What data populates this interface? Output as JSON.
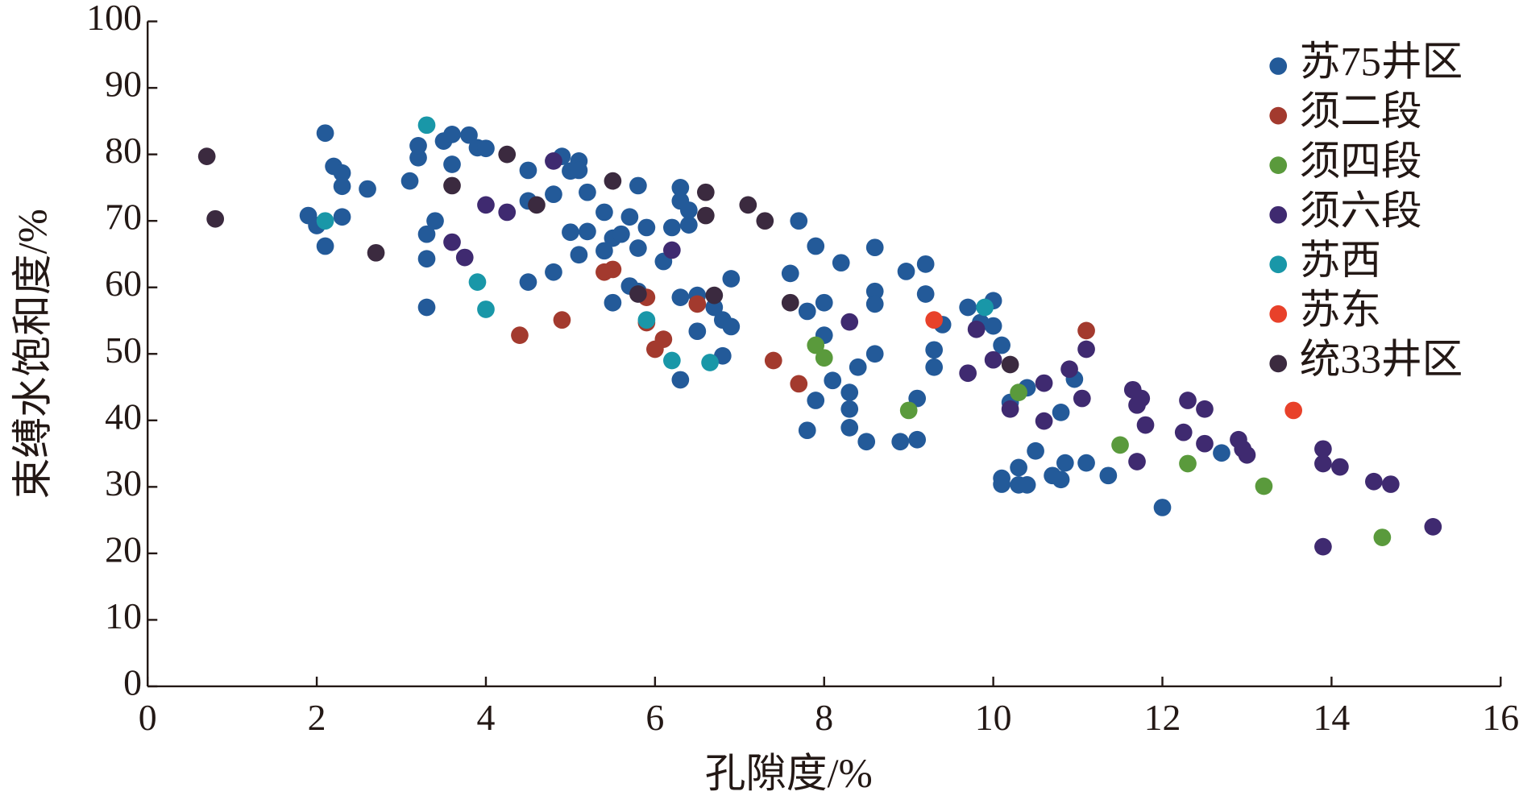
{
  "chart_data": {
    "type": "scatter",
    "x_label": "孔隙度/%",
    "y_label": "束缚水饱和度/%",
    "xlim": [
      0,
      16
    ],
    "ylim": [
      0,
      100
    ],
    "xticks": [
      0,
      2,
      4,
      6,
      8,
      10,
      12,
      14,
      16
    ],
    "yticks": [
      0,
      10,
      20,
      30,
      40,
      50,
      60,
      70,
      80,
      90,
      100
    ],
    "grid": false,
    "legend": "upper right",
    "series": [
      {
        "name": "苏75井区",
        "color": "#235a99",
        "x": [
          2.1,
          2.2,
          2.3,
          2.3,
          2.6,
          1.9,
          2.0,
          2.3,
          2.1,
          3.1,
          3.2,
          3.2,
          3.3,
          3.3,
          3.3,
          3.4,
          3.5,
          3.6,
          3.8,
          3.6,
          3.9,
          4.0,
          4.5,
          4.5,
          4.5,
          4.8,
          4.8,
          4.9,
          5.0,
          5.1,
          5.1,
          5.0,
          5.2,
          5.1,
          5.2,
          5.4,
          5.5,
          5.4,
          5.5,
          5.6,
          5.7,
          5.8,
          5.7,
          5.8,
          5.8,
          5.9,
          6.1,
          6.2,
          6.3,
          6.3,
          6.4,
          6.4,
          6.3,
          6.5,
          6.5,
          6.3,
          6.7,
          6.8,
          6.9,
          6.9,
          6.8,
          7.6,
          7.7,
          7.8,
          7.9,
          8.0,
          8.0,
          7.8,
          7.9,
          8.1,
          8.2,
          8.3,
          8.3,
          8.3,
          8.4,
          8.6,
          8.6,
          8.6,
          8.6,
          8.5,
          8.97,
          9.2,
          9.2,
          8.9,
          9.1,
          9.1,
          9.3,
          9.3,
          9.4,
          9.7,
          9.85,
          10.0,
          10.0,
          10.1,
          10.2,
          10.1,
          10.1,
          10.3,
          10.3,
          10.4,
          10.4,
          10.5,
          10.7,
          10.8,
          10.8,
          10.85,
          10.96,
          11.1,
          11.36,
          12.0,
          12.7
        ],
        "y": [
          83.2,
          78.2,
          77.2,
          75.2,
          74.8,
          70.8,
          69.3,
          70.6,
          66.2,
          76,
          79.5,
          81.3,
          68,
          64.3,
          57,
          70,
          82,
          83,
          82.9,
          78.5,
          81,
          80.9,
          73,
          77.6,
          60.8,
          74,
          62.3,
          79.7,
          77.5,
          79,
          77.6,
          68.3,
          68.4,
          64.9,
          74.3,
          71.3,
          67.4,
          65.5,
          57.7,
          68,
          70.6,
          75.3,
          60.2,
          65.9,
          59.4,
          69,
          63.9,
          69,
          75,
          73,
          69.4,
          71.6,
          58.5,
          58.8,
          53.4,
          46.1,
          57,
          55.1,
          61.3,
          54.1,
          49.7,
          62.1,
          70,
          56.4,
          66.2,
          52.8,
          57.7,
          38.5,
          43,
          46,
          63.7,
          44.2,
          41.7,
          38.9,
          48,
          59.4,
          57.5,
          66,
          50,
          36.8,
          62.4,
          63.5,
          59,
          36.8,
          37.1,
          43.3,
          50.6,
          48,
          54.4,
          57,
          54.7,
          58,
          54.2,
          51.3,
          42.7,
          31.3,
          30.4,
          32.9,
          30.3,
          30.3,
          44.9,
          35.4,
          31.7,
          31.1,
          41.2,
          33.6,
          46.2,
          33.6,
          31.7,
          26.9,
          35.1
        ]
      },
      {
        "name": "须二段",
        "color": "#a33a2e",
        "x": [
          4.4,
          4.9,
          5.4,
          5.5,
          5.9,
          5.9,
          6.0,
          6.1,
          6.5,
          7.4,
          7.7,
          11.1
        ],
        "y": [
          52.8,
          55.1,
          62.3,
          62.7,
          58.5,
          54.7,
          50.7,
          52.2,
          57.5,
          49,
          45.5,
          53.5
        ]
      },
      {
        "name": "须四段",
        "color": "#5a9a3c",
        "x": [
          7.9,
          8.0,
          9.0,
          10.3,
          11.5,
          12.3,
          13.2,
          14.6
        ],
        "y": [
          51.3,
          49.4,
          41.5,
          44.2,
          36.3,
          33.5,
          30.1,
          22.4
        ]
      },
      {
        "name": "须六段",
        "color": "#3f2a70",
        "x": [
          4.8,
          3.6,
          3.75,
          4.0,
          4.25,
          6.2,
          8.3,
          9.8,
          9.7,
          10.0,
          10.2,
          10.6,
          10.6,
          10.9,
          11.05,
          11.1,
          11.65,
          11.75,
          11.7,
          11.8,
          11.7,
          12.25,
          12.3,
          12.5,
          12.5,
          12.9,
          12.95,
          13.0,
          13.9,
          13.9,
          14.1,
          14.5,
          14.7,
          15.2,
          13.9
        ],
        "y": [
          79,
          66.8,
          64.5,
          72.4,
          71.3,
          65.6,
          54.8,
          53.7,
          47.1,
          49.1,
          41.7,
          45.6,
          39.9,
          47.7,
          43.3,
          50.7,
          44.6,
          43.3,
          42.3,
          39.3,
          33.8,
          38.2,
          43,
          41.7,
          36.5,
          37.1,
          35.7,
          34.8,
          35.7,
          33.5,
          33,
          30.8,
          30.4,
          24,
          21
        ]
      },
      {
        "name": "苏西",
        "color": "#1997a8",
        "x": [
          3.3,
          2.1,
          3.9,
          4.0,
          5.9,
          6.2,
          6.65,
          9.9
        ],
        "y": [
          84.4,
          70,
          60.8,
          56.7,
          55.1,
          49,
          48.7,
          57
        ]
      },
      {
        "name": "苏东",
        "color": "#e8412a",
        "x": [
          9.3,
          13.55
        ],
        "y": [
          55.1,
          41.5
        ]
      },
      {
        "name": "统33井区",
        "color": "#3b2a3f",
        "x": [
          0.7,
          0.8,
          2.7,
          3.6,
          4.25,
          4.6,
          5.5,
          6.6,
          6.6,
          7.1,
          7.3,
          5.8,
          6.7,
          7.6,
          10.2
        ],
        "y": [
          79.7,
          70.3,
          65.2,
          75.3,
          80,
          72.4,
          76,
          74.3,
          70.8,
          72.4,
          70,
          59,
          58.8,
          57.7,
          48.4
        ]
      }
    ]
  }
}
